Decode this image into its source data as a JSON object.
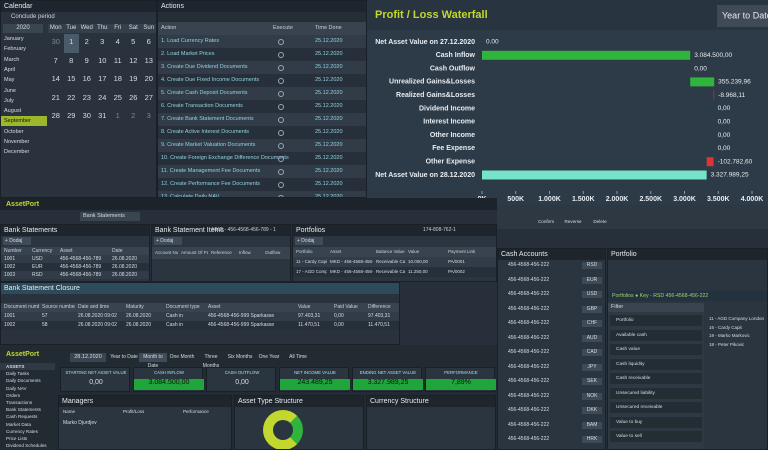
{
  "chart_data": {
    "type": "waterfall",
    "title": "Profit / Loss Waterfall",
    "period": "Year to Date",
    "categories": [
      "Net Asset Value on 27.12.2020",
      "Cash Inflow",
      "Cash Outflow",
      "Unrealized Gains&Losses",
      "Realized Gains&Losses",
      "Dividend Income",
      "Interest Income",
      "Other Income",
      "Fee Expense",
      "Other Expense",
      "Net Asset Value on 28.12.2020"
    ],
    "values": [
      0,
      3084500,
      0,
      355239.96,
      -8968.11,
      0,
      0,
      0,
      0,
      -102782.6,
      3327989.25
    ],
    "value_labels": [
      "0.00",
      "3.084.500,00",
      "0,00",
      "355.239,96",
      "-8.968,11",
      "0,00",
      "0,00",
      "0,00",
      "0,00",
      "-102.782,60",
      "3.327.989,25"
    ],
    "xlim": [
      0,
      4000000
    ],
    "xticks": [
      {
        "value": 0,
        "label": "0K"
      },
      {
        "value": 500000,
        "label": "500K"
      },
      {
        "value": 1000000,
        "label": "1.000K"
      },
      {
        "value": 1500000,
        "label": "1.500K"
      },
      {
        "value": 2000000,
        "label": "2.000K"
      },
      {
        "value": 2500000,
        "label": "2.500K"
      },
      {
        "value": 3000000,
        "label": "3.000K"
      },
      {
        "value": 3500000,
        "label": "3.500K"
      },
      {
        "value": 4000000,
        "label": "4.000K"
      }
    ],
    "increase_color": "#2fb43c",
    "decrease_color": "#d93636",
    "total_color": "#76e2c9"
  },
  "calendar": {
    "title": "Calendar",
    "action": "Conclude period",
    "year": "2020",
    "months": [
      "January",
      "February",
      "March",
      "April",
      "May",
      "June",
      "July",
      "August",
      "September",
      "October",
      "November",
      "December"
    ],
    "weekdays": [
      "Mon",
      "Tue",
      "Wed",
      "Thu",
      "Fri",
      "Sat",
      "Sun"
    ],
    "weeks": [
      [
        "30",
        "1",
        "2",
        "3",
        "4",
        "5",
        "6"
      ],
      [
        "7",
        "8",
        "9",
        "10",
        "11",
        "12",
        "13"
      ],
      [
        "14",
        "15",
        "16",
        "17",
        "18",
        "19",
        "20"
      ],
      [
        "21",
        "22",
        "23",
        "24",
        "25",
        "26",
        "27"
      ],
      [
        "28",
        "29",
        "30",
        "31",
        "1",
        "2",
        "3"
      ]
    ]
  },
  "actions": {
    "title": "Actions",
    "columns": [
      "Action",
      "Execute",
      "Time Done"
    ],
    "rows": [
      [
        "1. Load Currency Rates",
        "25.12.2020"
      ],
      [
        "2. Load Market Prices",
        "25.12.2020"
      ],
      [
        "3. Create Due Dividend Documents",
        "25.12.2020"
      ],
      [
        "4. Create Due Fixed Income Documents",
        "25.12.2020"
      ],
      [
        "5. Create Cash Deposit Documents",
        "25.12.2020"
      ],
      [
        "6. Create Transaction Documents",
        "25.12.2020"
      ],
      [
        "7. Create Bank Statement Documents",
        "25.12.2020"
      ],
      [
        "8. Create Active Interest Documents",
        "25.12.2020"
      ],
      [
        "9. Create Market Valuation Documents",
        "25.12.2020"
      ],
      [
        "10. Create Foreign Exchange Difference Documents",
        "25.12.2020"
      ],
      [
        "11. Create Management Fee Documents",
        "25.12.2020"
      ],
      [
        "12. Create Performance Fee Documents",
        "25.12.2020"
      ],
      [
        "13. Calculate Daily NAV",
        "25.12.2020"
      ]
    ]
  },
  "statements": {
    "logo": "AssetPort",
    "tab": "Bank Statements",
    "add": "+ Dodaj",
    "bank_statements": {
      "title": "Bank Statements",
      "columns": [
        "Number",
        "Currency",
        "Asset",
        "Date"
      ],
      "rows": [
        [
          "1001",
          "USD",
          "456-4568-456-789",
          "26.08.2020"
        ],
        [
          "1002",
          "EUR",
          "456-4568-456-789",
          "26.08.2020"
        ],
        [
          "1003",
          "RSD",
          "456-4568-456-789",
          "26.08.2020"
        ]
      ]
    },
    "items": {
      "title": "Bank Statement Items",
      "key": "MKD - 456-4568-456-789 - 1",
      "columns": [
        "Account Number",
        "Amount Of Payment",
        "Reference",
        "Inflow",
        "Outflow"
      ]
    },
    "portfolios": {
      "title": "Portfolios",
      "key": "174-808-762-1",
      "columns": [
        "Portfolio",
        "Asset",
        "Balance Value",
        "Value",
        "Payment Link"
      ],
      "rows": [
        [
          "11 - Cardy Capit",
          "MKD - 456-4568-456-789",
          "Receivable Cash",
          "10.000,00",
          "PA/0001"
        ],
        [
          "17 - AGD Company",
          "MKD - 456-4568-456-789",
          "Receivable Cash",
          "11.250,00",
          "PA/0002"
        ]
      ]
    },
    "closure": {
      "title": "Bank Statement Closure",
      "columns": [
        "Document number",
        "Source number",
        "Date and time",
        "Maturity",
        "Document type",
        "Asset",
        "Value",
        "Paid Value",
        "Difference"
      ],
      "rows": [
        [
          "1001",
          "57",
          "26.08.2020 09:02",
          "26.08.2020",
          "Cash in",
          "456-4568-456-999 Sparkasse",
          "97.403,31",
          "0,00",
          "97.403,31"
        ],
        [
          "1002",
          "58",
          "26.08.2020 09:02",
          "26.08.2020",
          "Cash in",
          "456-4568-456-999 Sparkasse",
          "11.470,51",
          "0,00",
          "11.470,51"
        ]
      ]
    }
  },
  "dashboard": {
    "logo": "AssetPort",
    "menu": [
      "ASSETS",
      "Daily Tasks",
      "Daily Documents",
      "Daily NAV",
      "Orders",
      "Transactions",
      "Bank Statements",
      "Cash Requests",
      "Market Data",
      "Currency Rates",
      "Price Lists",
      "Dividend Schedules"
    ],
    "date": "28.12.2020",
    "tabs": [
      "Year to Date",
      "Month to Date",
      "One Month",
      "Three Months",
      "Six Months",
      "One Year",
      "All Time"
    ],
    "kpis": [
      {
        "label": "STARTING NET ASSET VALUE",
        "value": "0,00"
      },
      {
        "label": "CASH INFLOW",
        "value": "3.084.500,00"
      },
      {
        "label": "CASH OUTFLOW",
        "value": "0,00"
      },
      {
        "label": "NET INCOME VALUE",
        "value": "243.489,25"
      },
      {
        "label": "ENDING NET ASSET VALUE",
        "value": "3.327.989,25"
      },
      {
        "label": "PERFORMANCE",
        "value": "7,89%"
      }
    ],
    "sections": [
      "Managers",
      "Asset Type Structure",
      "Currency Structure"
    ],
    "manager_columns": [
      "Name",
      "Profit/Loss",
      "Performance"
    ],
    "manager": "Marko Djurdjev"
  },
  "accounts": {
    "buttons": [
      "Confirm",
      "Reverse",
      "Delete"
    ],
    "cash_title": "Cash Accounts",
    "cash_accounts": [
      [
        "456-4568-456-222",
        "RSD"
      ],
      [
        "456-4568-456-222",
        "EUR"
      ],
      [
        "456-4568-456-222",
        "USD"
      ],
      [
        "456-4568-456-222",
        "GBP"
      ],
      [
        "456-4568-456-222",
        "CHF"
      ],
      [
        "456-4568-456-222",
        "AUD"
      ],
      [
        "456-4568-456-222",
        "CAD"
      ],
      [
        "456-4568-456-222",
        "JPY"
      ],
      [
        "456-4568-456-222",
        "SEK"
      ],
      [
        "456-4568-456-222",
        "NOK"
      ],
      [
        "456-4568-456-222",
        "DKK"
      ],
      [
        "456-4568-456-222",
        "BAM"
      ],
      [
        "456-4568-456-222",
        "HRK"
      ]
    ],
    "portfolio_title": "Portfolio",
    "portfolio_key": "Portfolios ● Key - RSD 456-4568-456-222",
    "filter": "Filter",
    "fields": [
      "Portfolio",
      "Available cash",
      "Cash value",
      "Cash liquidity",
      "Cash receivable",
      "Unsecured liability",
      "Unsecured receivable",
      "Value to buy",
      "Value to sell"
    ],
    "portfolios": [
      "11 - AGD Company London",
      "16 - Cardy Capit",
      "19 - Marko Markovic",
      "18 - Peter Pikovic"
    ]
  }
}
